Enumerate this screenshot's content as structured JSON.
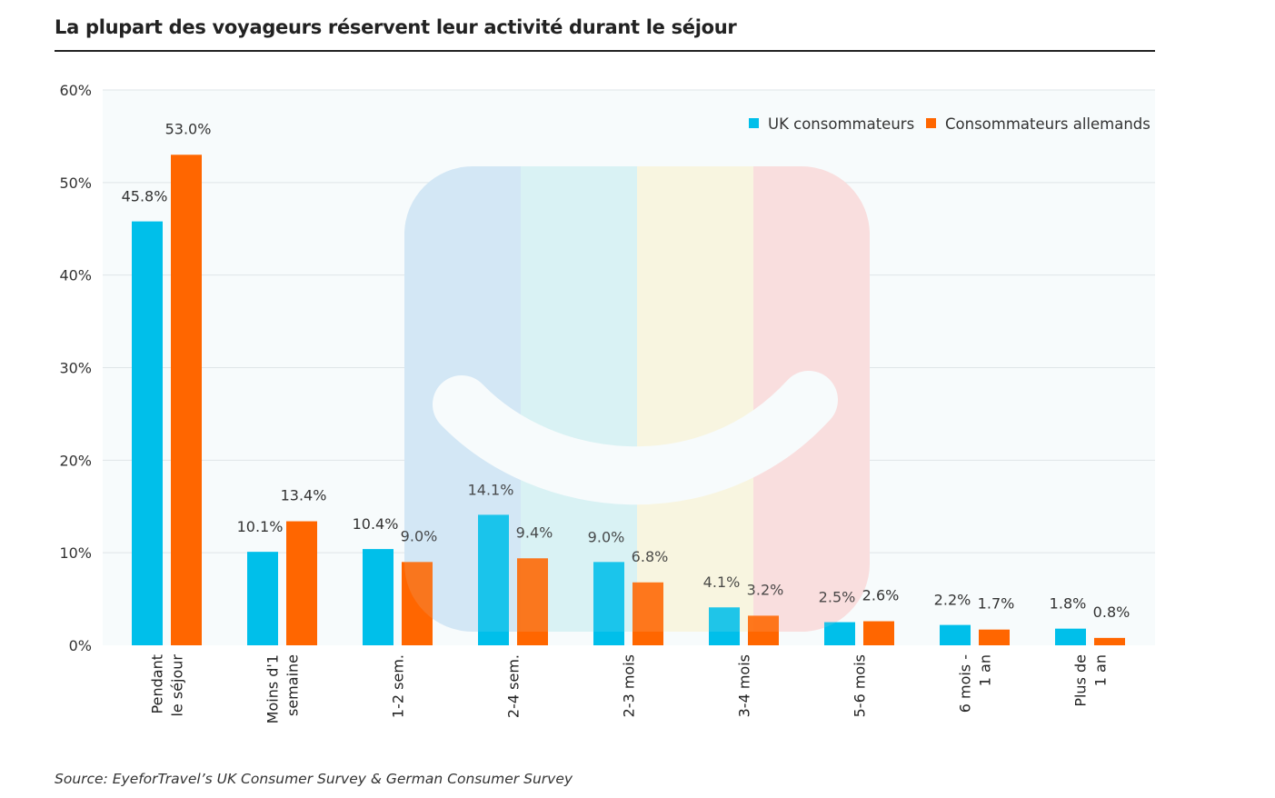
{
  "chart_data": {
    "type": "bar",
    "title": "La plupart des voyageurs réservent leur activité durant le séjour",
    "source": "Source: EyeforTravel’s UK Consumer Survey & German Consumer Survey",
    "categories": [
      [
        "Pendant",
        "le séjour"
      ],
      [
        "Moins d'1",
        "semaine"
      ],
      [
        "1-2 sem."
      ],
      [
        "2-4 sem."
      ],
      [
        "2-3 mois"
      ],
      [
        "3-4 mois"
      ],
      [
        "5-6 mois"
      ],
      [
        "6 mois -",
        "1 an"
      ],
      [
        "Plus de",
        "1 an"
      ]
    ],
    "series": [
      {
        "name": "UK consommateurs",
        "color": "#00bfea",
        "values": [
          45.8,
          10.1,
          10.4,
          14.1,
          9.0,
          4.1,
          2.5,
          2.2,
          1.8
        ],
        "labels": [
          "45.8%",
          "10.1%",
          "10.4%",
          "14.1%",
          "9.0%",
          "4.1%",
          "2.5%",
          "2.2%",
          "1.8%"
        ]
      },
      {
        "name": "Consommateurs allemands",
        "color": "#ff6600",
        "values": [
          53.0,
          13.4,
          9.0,
          9.4,
          6.8,
          3.2,
          2.6,
          1.7,
          0.8
        ],
        "labels": [
          "53.0%",
          "13.4%",
          "9.0%",
          "9.4%",
          "6.8%",
          "3.2%",
          "2.6%",
          "1.7%",
          "0.8%"
        ]
      }
    ],
    "ylim": [
      0,
      60
    ],
    "yticks": [
      "0%",
      "10%",
      "20%",
      "30%",
      "40%",
      "50%",
      "60%"
    ],
    "xlabel": "",
    "ylabel": "",
    "grid": true,
    "legend": "top-right"
  }
}
